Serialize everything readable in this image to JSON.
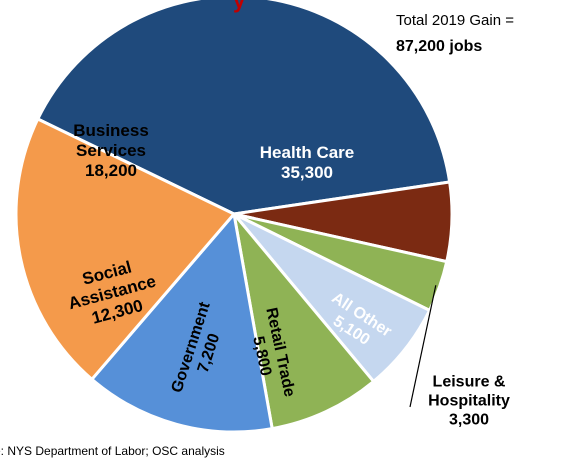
{
  "header": {
    "top_fragment": "y",
    "total_line1": "Total 2019 Gain =",
    "total_line2": "87,200 jobs"
  },
  "source": "e: NYS Department of Labor; OSC analysis",
  "chart_data": {
    "type": "pie",
    "title": "",
    "slices": [
      {
        "label": [
          "Health Care"
        ],
        "value_label": "35,300",
        "value": 35300,
        "color": "#1f4a7c",
        "text_color": "#ffffff"
      },
      {
        "label": [
          "All Other"
        ],
        "value_label": "5,100",
        "value": 5100,
        "color": "#7b2a12",
        "text_color": "#ffffff"
      },
      {
        "label": [
          "Leisure &",
          "Hospitality"
        ],
        "value_label": "3,300",
        "value": 3300,
        "color": "#8fb355",
        "text_color": "#000000"
      },
      {
        "label": [
          "Retail Trade"
        ],
        "value_label": "5,800",
        "value": 5800,
        "color": "#c5d7ef",
        "text_color": "#000000"
      },
      {
        "label": [
          "Government"
        ],
        "value_label": "7,200",
        "value": 7200,
        "color": "#8fb355",
        "text_color": "#000000"
      },
      {
        "label": [
          "Social",
          "Assistance"
        ],
        "value_label": "12,300",
        "value": 12300,
        "color": "#5690d8",
        "text_color": "#000000"
      },
      {
        "label": [
          "Business",
          "Services"
        ],
        "value_label": "18,200",
        "value": 18200,
        "color": "#f49a4b",
        "text_color": "#000000"
      }
    ]
  }
}
